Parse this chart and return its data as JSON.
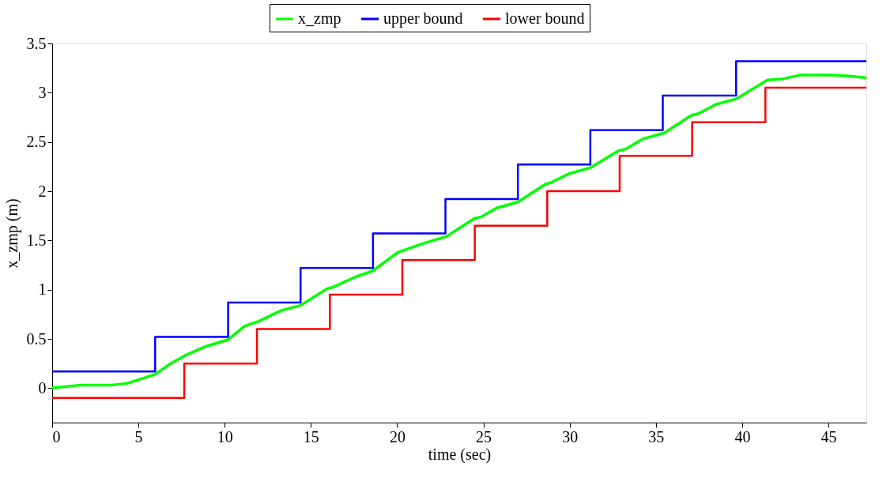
{
  "chart_data": {
    "type": "line",
    "xlabel": "time (sec)",
    "ylabel": "x_zmp (m)",
    "xlim": [
      0,
      47.2
    ],
    "ylim": [
      -0.35,
      3.5
    ],
    "xticks": [
      0,
      5,
      10,
      15,
      20,
      25,
      30,
      35,
      40,
      45
    ],
    "yticks": [
      0,
      0.5,
      1,
      1.5,
      2,
      2.5,
      3,
      3.5
    ],
    "grid": false,
    "legend": "top",
    "marker": "none",
    "line_style": "solid",
    "series": [
      {
        "name": "x_zmp",
        "color": "#00ff00",
        "x": [
          0,
          1.59,
          3.4,
          4.39,
          5.97,
          6.87,
          7.69,
          8.85,
          10.17,
          11.16,
          11.98,
          13.3,
          14.4,
          15.94,
          16.35,
          17.59,
          18.58,
          19.73,
          20.07,
          21.52,
          22.86,
          24.44,
          24.88,
          25.77,
          27.0,
          28.59,
          28.94,
          30.0,
          31.23,
          32.82,
          33.27,
          34.23,
          35.47,
          37.06,
          37.5,
          38.47,
          39.7,
          41.47,
          42.34,
          43.41,
          45.0,
          46.2,
          47.2
        ],
        "values": [
          0.0,
          0.03,
          0.03,
          0.05,
          0.14,
          0.25,
          0.33,
          0.42,
          0.49,
          0.63,
          0.68,
          0.79,
          0.84,
          1.01,
          1.03,
          1.13,
          1.19,
          1.34,
          1.38,
          1.47,
          1.54,
          1.72,
          1.74,
          1.83,
          1.89,
          2.07,
          2.09,
          2.18,
          2.24,
          2.41,
          2.43,
          2.53,
          2.59,
          2.77,
          2.79,
          2.88,
          2.94,
          3.13,
          3.14,
          3.18,
          3.18,
          3.17,
          3.15
        ]
      },
      {
        "name": "upper bound",
        "color": "#0000ff",
        "type": "step",
        "x": [
          0,
          5.97,
          10.2,
          14.4,
          18.6,
          22.8,
          27.0,
          31.2,
          35.4,
          39.65,
          47.2
        ],
        "values": [
          0.17,
          0.52,
          0.87,
          1.22,
          1.57,
          1.92,
          2.27,
          2.62,
          2.97,
          3.32,
          3.32
        ]
      },
      {
        "name": "lower bound",
        "color": "#ff0000",
        "type": "step",
        "x": [
          0,
          7.66,
          11.87,
          16.1,
          20.3,
          24.5,
          28.7,
          32.9,
          37.1,
          41.35,
          47.2
        ],
        "values": [
          -0.1,
          0.25,
          0.6,
          0.95,
          1.3,
          1.65,
          2.0,
          2.36,
          2.7,
          3.05,
          3.05
        ]
      }
    ]
  }
}
